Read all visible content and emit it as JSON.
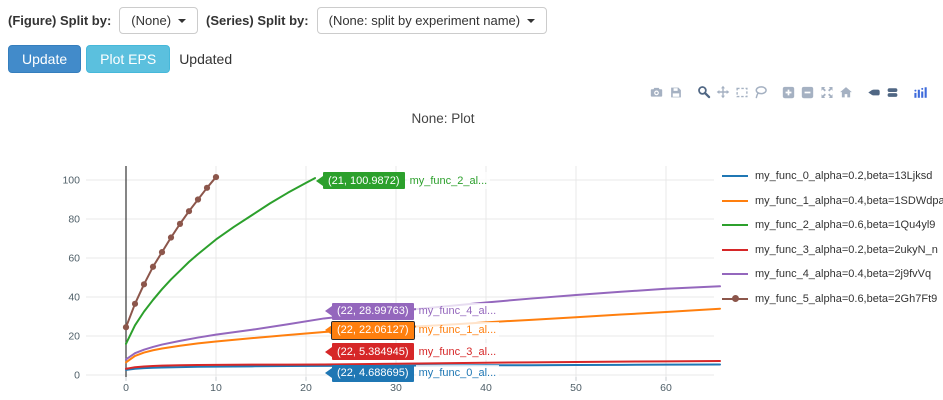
{
  "controls": {
    "figure_split_label": "(Figure) Split by:",
    "figure_split_value": "(None)",
    "series_split_label": "(Series) Split by:",
    "series_split_value": "(None: split by experiment name)"
  },
  "actions": {
    "update_label": "Update",
    "plot_eps_label": "Plot EPS",
    "status_text": "Updated"
  },
  "modebar": {
    "colors": {
      "inactive": "#a5b1c2",
      "active": "#506784",
      "logo": "#3d6adb"
    },
    "groups": [
      {
        "icons": [
          {
            "name": "camera",
            "active": false
          },
          {
            "name": "save",
            "active": false
          }
        ]
      },
      {
        "icons": [
          {
            "name": "zoom",
            "active": true
          },
          {
            "name": "pan",
            "active": false
          },
          {
            "name": "box-select",
            "active": false
          },
          {
            "name": "lasso",
            "active": false
          }
        ]
      },
      {
        "icons": [
          {
            "name": "zoom-in",
            "active": false
          },
          {
            "name": "zoom-out",
            "active": false
          },
          {
            "name": "autoscale",
            "active": false
          },
          {
            "name": "home",
            "active": false
          }
        ]
      },
      {
        "icons": [
          {
            "name": "hover-closest",
            "active": true
          },
          {
            "name": "hover-compare",
            "active": true
          }
        ]
      },
      {
        "icons": [
          {
            "name": "plotly-logo",
            "active": false,
            "logo": true
          }
        ]
      }
    ]
  },
  "chart_data": {
    "type": "line",
    "title": "None: Plot",
    "xlabel": "",
    "ylabel": "",
    "grid": true,
    "legend_position": "right",
    "x_ticks": [
      0,
      10,
      20,
      30,
      40,
      50,
      60
    ],
    "y_ticks": [
      0,
      20,
      40,
      60,
      80,
      100
    ],
    "x_range": [
      -4,
      69.5
    ],
    "y_range": [
      -4,
      107
    ],
    "series": [
      {
        "name": "my_func_0_alpha=0.2,beta=13Ljksd",
        "color": "#1f77b4",
        "mode": "lines",
        "x": [
          0,
          1,
          2,
          3,
          4,
          6,
          8,
          10,
          14,
          18,
          22,
          26,
          30,
          35,
          40,
          45,
          50,
          55,
          60,
          66
        ],
        "y": [
          2.6,
          3.2,
          3.5,
          3.7,
          3.85,
          4.05,
          4.2,
          4.3,
          4.45,
          4.6,
          4.69,
          4.76,
          4.83,
          4.9,
          4.97,
          5.03,
          5.1,
          5.2,
          5.3,
          5.4
        ]
      },
      {
        "name": "my_func_1_alpha=0.4,beta=1SDWdpa",
        "color": "#ff7f0e",
        "mode": "lines",
        "x": [
          0,
          1,
          2,
          3,
          4,
          6,
          8,
          10,
          14,
          18,
          22,
          26,
          30,
          35,
          40,
          45,
          50,
          55,
          60,
          66
        ],
        "y": [
          6.5,
          9.8,
          11.5,
          12.7,
          13.6,
          15.0,
          16.2,
          17.2,
          18.9,
          20.5,
          22.06,
          23.2,
          24.3,
          25.6,
          27.0,
          28.3,
          29.6,
          31.0,
          32.3,
          34.0
        ]
      },
      {
        "name": "my_func_2_alpha=0.6,beta=1Qu4yl9",
        "color": "#2ca02c",
        "mode": "lines",
        "x": [
          0,
          1,
          2,
          3,
          4,
          5,
          6,
          7,
          8,
          10,
          12,
          14,
          16,
          18,
          20,
          21
        ],
        "y": [
          16,
          25.5,
          32.5,
          38.5,
          44,
          49,
          53.5,
          58,
          62,
          69.5,
          76,
          82,
          88,
          93.5,
          98.5,
          100.99
        ]
      },
      {
        "name": "my_func_3_alpha=0.2,beta=2ukyN_n",
        "color": "#d62728",
        "mode": "lines",
        "x": [
          0,
          1,
          2,
          3,
          4,
          6,
          8,
          10,
          14,
          18,
          22,
          26,
          30,
          35,
          40,
          45,
          50,
          55,
          60,
          66
        ],
        "y": [
          3.2,
          4.0,
          4.35,
          4.6,
          4.8,
          5.0,
          5.12,
          5.2,
          5.29,
          5.34,
          5.38,
          5.55,
          5.78,
          6.05,
          6.3,
          6.5,
          6.68,
          6.85,
          7.0,
          7.2
        ]
      },
      {
        "name": "my_func_4_alpha=0.4,beta=2j9fvVq",
        "color": "#9467bd",
        "mode": "lines",
        "x": [
          0,
          1,
          2,
          3,
          4,
          6,
          8,
          10,
          14,
          18,
          22,
          26,
          30,
          35,
          40,
          45,
          50,
          55,
          60,
          66
        ],
        "y": [
          8.0,
          11.2,
          13.0,
          14.4,
          15.6,
          17.5,
          19.2,
          20.7,
          23.2,
          26.0,
          29.0,
          31.0,
          32.8,
          35.0,
          37.2,
          39.2,
          41.0,
          42.7,
          44.2,
          45.5
        ]
      },
      {
        "name": "my_func_5_alpha=0.6,beta=2Gh7Ft9",
        "color": "#8c564b",
        "mode": "lines+markers",
        "x": [
          0,
          1,
          2,
          3,
          4,
          5,
          6,
          7,
          8,
          9,
          10
        ],
        "y": [
          24.5,
          36.5,
          46.5,
          55.5,
          63,
          70.5,
          77.5,
          84,
          90,
          96,
          101.5
        ]
      }
    ],
    "annotations": [
      {
        "point_text": "(21, 100.9872)",
        "name_text": "my_func_2_al...",
        "color": "#2ca02c",
        "x": 21,
        "label_y": 99.5,
        "outlined": false
      },
      {
        "point_text": "(22, 28.99763)",
        "name_text": "my_func_4_al...",
        "color": "#9467bd",
        "x": 22,
        "label_y": 32.8,
        "outlined": false
      },
      {
        "point_text": "(22, 22.06127)",
        "name_text": "my_func_1_al...",
        "color": "#ff7f0e",
        "x": 22,
        "label_y": 23.0,
        "outlined": true
      },
      {
        "point_text": "(22, 5.384945)",
        "name_text": "my_func_3_al...",
        "color": "#d62728",
        "x": 22,
        "label_y": 11.8,
        "outlined": false
      },
      {
        "point_text": "(22, 4.688695)",
        "name_text": "my_func_0_al...",
        "color": "#1f77b4",
        "x": 22,
        "label_y": 1.0,
        "outlined": false
      }
    ]
  }
}
